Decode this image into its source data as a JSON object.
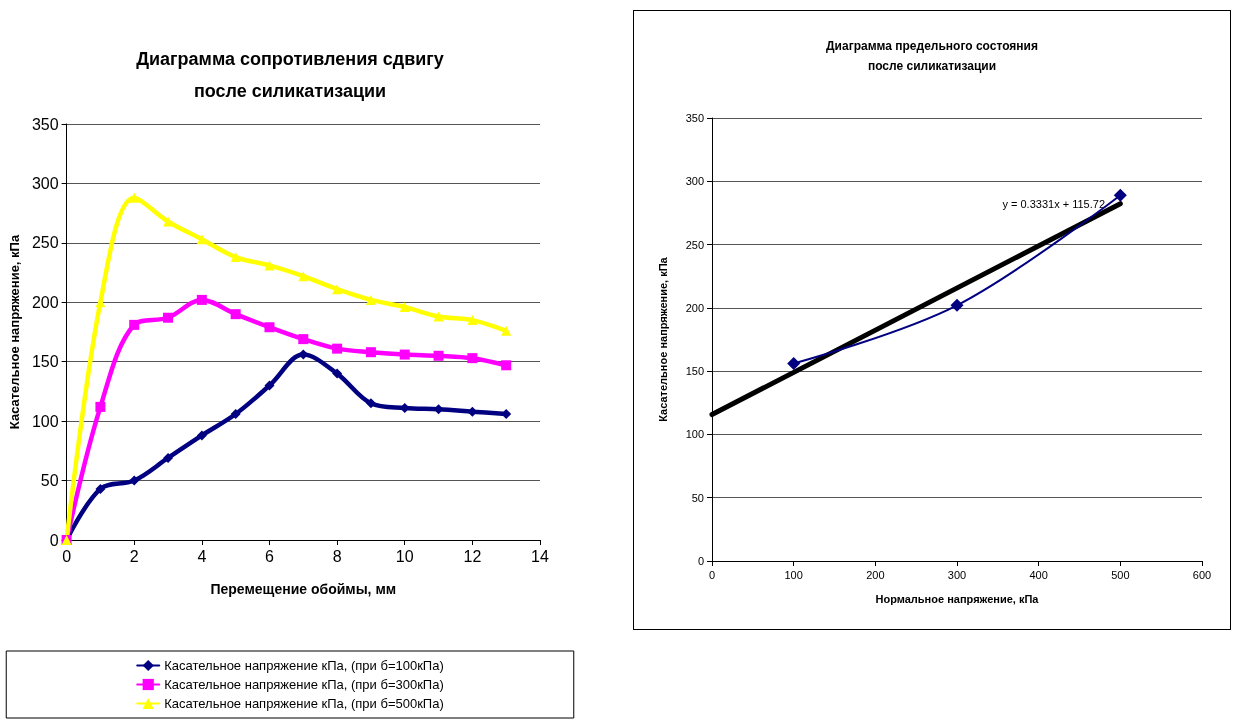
{
  "chart_data": [
    {
      "type": "line",
      "title": "Диаграмма сопротивления сдвигу\nпосле силикатизации",
      "xlabel": "Перемещение обоймы, мм",
      "ylabel": "Касательное напряжение, кПа",
      "x": [
        0,
        1,
        2,
        3,
        4,
        5,
        6,
        7,
        8,
        9,
        10,
        11,
        12,
        13
      ],
      "series": [
        {
          "name": "Касательное напряжение кПа, (при б=100кПа)",
          "color": "#000080",
          "marker": "diamond",
          "values": [
            0,
            43,
            50,
            69,
            88,
            106,
            130,
            156,
            140,
            115,
            111,
            110,
            108,
            106
          ]
        },
        {
          "name": "Касательное напряжение кПа, (при б=300кПа)",
          "color": "#ff00ff",
          "marker": "square",
          "values": [
            0,
            112,
            181,
            187,
            202,
            190,
            179,
            169,
            161,
            158,
            156,
            155,
            153,
            147
          ]
        },
        {
          "name": "Касательное напряжение кПа, (при б=500кПа)",
          "color": "#ffff00",
          "marker": "triangle",
          "values": [
            0,
            200,
            288,
            268,
            253,
            238,
            231,
            222,
            211,
            202,
            196,
            188,
            185,
            176
          ]
        }
      ],
      "xlim": [
        0,
        14
      ],
      "xticks": [
        0,
        2,
        4,
        6,
        8,
        10,
        12,
        14
      ],
      "ylim": [
        0,
        350
      ],
      "yticks": [
        0,
        50,
        100,
        150,
        200,
        250,
        300,
        350
      ],
      "grid": "y",
      "legend": "bottom",
      "line_style": "solid"
    },
    {
      "type": "line",
      "title": "Диаграмма предельного состояния\nпосле силикатизации",
      "xlabel": "Нормальное напряжение, кПа",
      "ylabel": "Касательное напряжение, кПа",
      "annotations": [
        "y = 0.3331x + 115.72"
      ],
      "series": [
        {
          "color": "#000080",
          "marker": "diamond",
          "x": [
            100,
            300,
            500
          ],
          "values": [
            156,
            202,
            289
          ]
        },
        {
          "color": "#000000",
          "marker": "none",
          "x": [
            0,
            500
          ],
          "values": [
            115.72,
            282.27
          ]
        }
      ],
      "xlim": [
        0,
        600
      ],
      "xticks": [
        0,
        100,
        200,
        300,
        400,
        500,
        600
      ],
      "ylim": [
        0,
        350
      ],
      "yticks": [
        0,
        50,
        100,
        150,
        200,
        250,
        300,
        350
      ],
      "grid": "y",
      "legend": false,
      "line_style": "solid"
    }
  ]
}
